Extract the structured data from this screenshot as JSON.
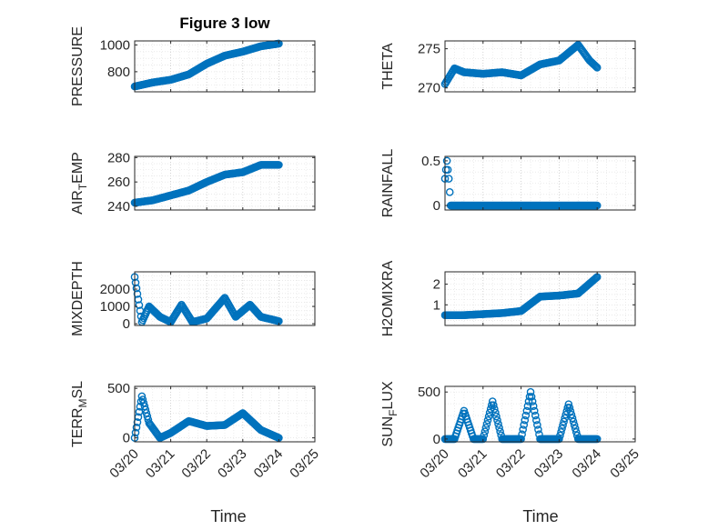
{
  "figure": {
    "title": "Figure 3 low",
    "xlabel": "Time",
    "marker_color": "#0072BD",
    "x_ticks": [
      0,
      1,
      2,
      3,
      4,
      5
    ],
    "x_tick_labels": [
      "03/20",
      "03/21",
      "03/22",
      "03/23",
      "03/24",
      "03/25"
    ]
  },
  "chart_data": [
    {
      "id": "pressure",
      "type": "scatter",
      "title": "Figure 3 low",
      "ylabel": "PRESSURE",
      "xlabel": "",
      "xlim": [
        0,
        5
      ],
      "ylim": [
        650,
        1030
      ],
      "yticks": [
        800,
        1000
      ],
      "ytick_labels": [
        "800",
        "1000"
      ],
      "x": [
        0.0,
        0.5,
        1.0,
        1.5,
        2.0,
        2.5,
        3.0,
        3.5,
        4.0
      ],
      "y": [
        690,
        720,
        740,
        780,
        860,
        920,
        950,
        990,
        1010
      ]
    },
    {
      "id": "theta",
      "type": "scatter",
      "ylabel": "THETA",
      "xlabel": "",
      "xlim": [
        0,
        5
      ],
      "ylim": [
        269.5,
        276
      ],
      "yticks": [
        270,
        275
      ],
      "ytick_labels": [
        "270",
        "275"
      ],
      "x": [
        0.0,
        0.25,
        0.5,
        1.0,
        1.5,
        2.0,
        2.5,
        3.0,
        3.5,
        3.8,
        4.0
      ],
      "y": [
        270.5,
        272.5,
        272.0,
        271.8,
        272.0,
        271.6,
        273.0,
        273.5,
        275.5,
        273.5,
        272.6
      ]
    },
    {
      "id": "air_temp",
      "type": "scatter",
      "ylabel": "AIR_TEMP",
      "xlabel": "",
      "xlim": [
        0,
        5
      ],
      "ylim": [
        237,
        281
      ],
      "yticks": [
        240,
        260,
        280
      ],
      "ytick_labels": [
        "240",
        "260",
        "280"
      ],
      "x": [
        0.0,
        0.5,
        1.0,
        1.5,
        2.0,
        2.5,
        3.0,
        3.5,
        4.0
      ],
      "y": [
        243,
        245,
        249,
        253,
        260,
        266,
        268,
        274,
        274
      ]
    },
    {
      "id": "rainfall",
      "type": "scatter",
      "ylabel": "RAINFALL",
      "xlabel": "",
      "xlim": [
        0,
        5
      ],
      "ylim": [
        -0.05,
        0.55
      ],
      "yticks": [
        0,
        0.5
      ],
      "ytick_labels": [
        "0",
        "0.5"
      ],
      "x": [
        0.0,
        0.05,
        0.1,
        0.15,
        1.0,
        2.0,
        3.0,
        4.0
      ],
      "y": [
        0.3,
        0.5,
        0.3,
        0.0,
        0.0,
        0.0,
        0.0,
        0.0
      ]
    },
    {
      "id": "mixdepth",
      "type": "scatter",
      "ylabel": "MIXDEPTH",
      "xlabel": "",
      "xlim": [
        0,
        5
      ],
      "ylim": [
        -100,
        3000
      ],
      "yticks": [
        0,
        1000,
        2000
      ],
      "ytick_labels": [
        "0",
        "1000",
        "2000"
      ],
      "x": [
        0.0,
        0.2,
        0.4,
        0.7,
        1.0,
        1.3,
        1.6,
        2.0,
        2.5,
        2.8,
        3.2,
        3.5,
        4.0
      ],
      "y": [
        2700,
        100,
        1000,
        400,
        100,
        1100,
        100,
        300,
        1500,
        400,
        1100,
        400,
        150
      ]
    },
    {
      "id": "h2omixra",
      "type": "scatter",
      "ylabel": "H2OMIXRA",
      "xlabel": "",
      "xlim": [
        0,
        5
      ],
      "ylim": [
        0,
        2.6
      ],
      "yticks": [
        1,
        2
      ],
      "ytick_labels": [
        "1",
        "2"
      ],
      "x": [
        0.0,
        0.5,
        1.0,
        1.5,
        2.0,
        2.5,
        3.0,
        3.5,
        4.0
      ],
      "y": [
        0.5,
        0.5,
        0.55,
        0.6,
        0.7,
        1.4,
        1.45,
        1.55,
        2.35
      ]
    },
    {
      "id": "terr_msl",
      "type": "scatter",
      "ylabel": "TERR_MSL",
      "xlabel": "Time",
      "xlim": [
        0,
        5
      ],
      "ylim": [
        -40,
        520
      ],
      "yticks": [
        0,
        500
      ],
      "ytick_labels": [
        "0",
        "500"
      ],
      "x": [
        0.0,
        0.2,
        0.4,
        0.7,
        1.0,
        1.5,
        2.0,
        2.5,
        3.0,
        3.5,
        4.0
      ],
      "y": [
        0,
        420,
        150,
        0,
        50,
        170,
        120,
        130,
        250,
        80,
        0
      ]
    },
    {
      "id": "sun_flux",
      "type": "scatter",
      "ylabel": "SUN_FLUX",
      "xlabel": "Time",
      "xlim": [
        0,
        5
      ],
      "ylim": [
        -30,
        560
      ],
      "yticks": [
        0,
        500
      ],
      "ytick_labels": [
        "0",
        "500"
      ],
      "x": [
        0.0,
        0.25,
        0.5,
        0.75,
        1.0,
        1.25,
        1.5,
        1.75,
        2.0,
        2.25,
        2.5,
        2.75,
        3.0,
        3.25,
        3.5,
        3.75,
        4.0
      ],
      "y": [
        0,
        0,
        300,
        0,
        0,
        400,
        0,
        0,
        0,
        500,
        0,
        0,
        0,
        370,
        0,
        0,
        0
      ]
    }
  ]
}
